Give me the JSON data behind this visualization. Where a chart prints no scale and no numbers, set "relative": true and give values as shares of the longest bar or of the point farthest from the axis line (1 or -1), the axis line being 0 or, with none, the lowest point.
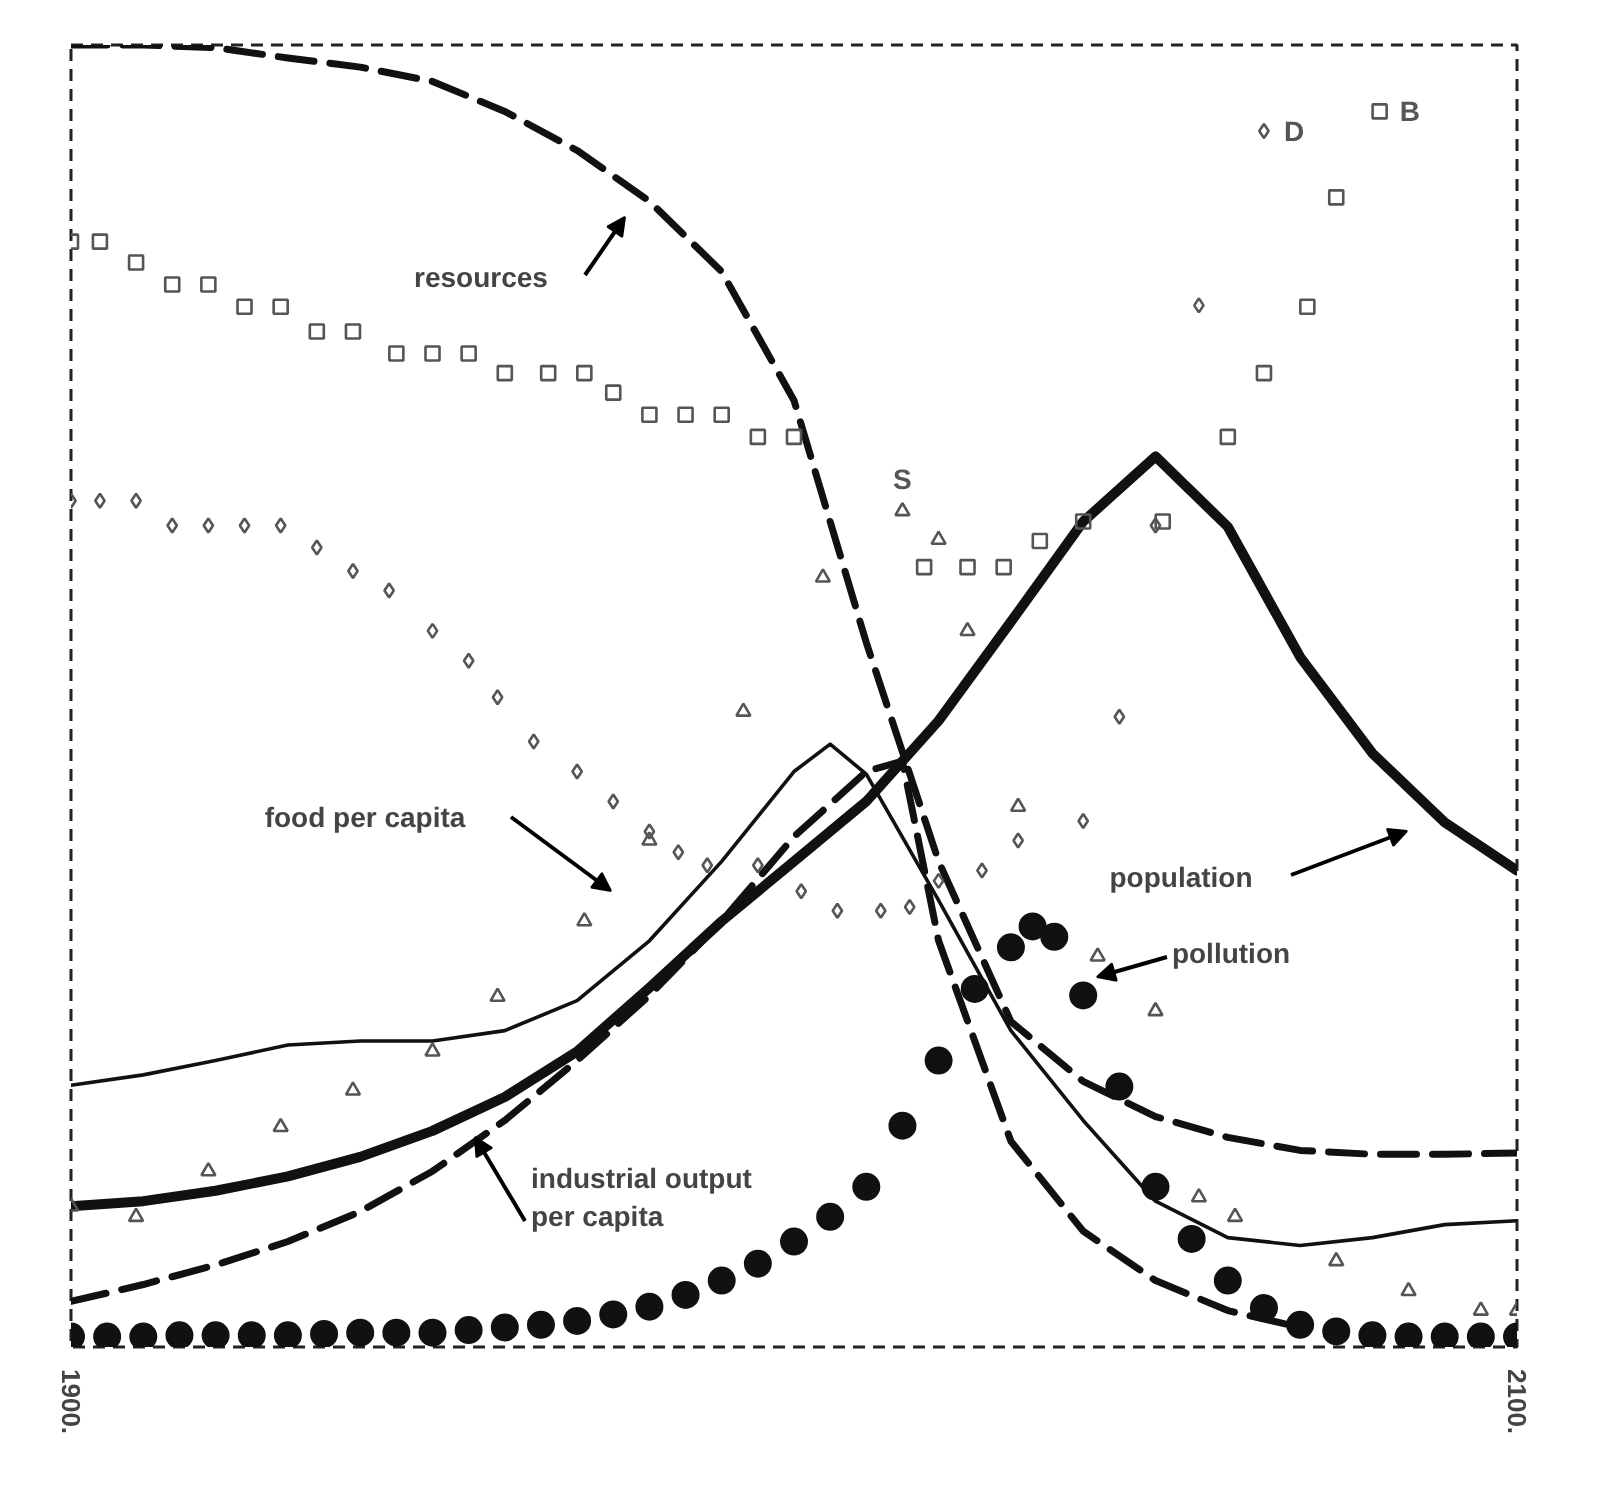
{
  "chart_data": {
    "type": "line",
    "relative": true,
    "xlim": [
      1900,
      2100
    ],
    "xticks": [
      {
        "value": 1900,
        "label": "1900."
      },
      {
        "value": 2100,
        "label": "2100."
      }
    ],
    "grid": false,
    "legend": false,
    "tick_labels": "x",
    "series": [
      {
        "color": "#111111",
        "line_style": "dashed",
        "x": [
          1900,
          1910,
          1920,
          1930,
          1940,
          1950,
          1960,
          1970,
          1980,
          1990,
          2000,
          2010,
          2020,
          2030,
          2040,
          2050,
          2060,
          2070,
          2080,
          2090,
          2100
        ],
        "values": [
          1.0,
          1.0,
          0.998,
          0.99,
          0.983,
          0.972,
          0.949,
          0.919,
          0.88,
          0.826,
          0.727,
          0.541,
          0.373,
          0.25,
          0.204,
          0.177,
          0.161,
          0.151,
          0.148,
          0.148,
          0.149
        ]
      },
      {
        "color": "#111111",
        "line_style": "solid",
        "x": [
          1900,
          1910,
          1920,
          1930,
          1940,
          1950,
          1960,
          1970,
          1980,
          1990,
          2000,
          2010,
          2020,
          2030,
          2040,
          2050,
          2060,
          2070,
          2080,
          2090,
          2100
        ],
        "values": [
          0.108,
          0.112,
          0.12,
          0.131,
          0.146,
          0.166,
          0.192,
          0.227,
          0.276,
          0.327,
          0.373,
          0.419,
          0.481,
          0.557,
          0.634,
          0.684,
          0.63,
          0.53,
          0.456,
          0.403,
          0.366
        ]
      },
      {
        "color": "#111111",
        "line_style": "solid",
        "x": [
          1900,
          1910,
          1920,
          1930,
          1940,
          1950,
          1960,
          1970,
          1980,
          1990,
          2000,
          2005,
          2010,
          2020,
          2030,
          2040,
          2050,
          2060,
          2070,
          2080,
          2090,
          2100
        ],
        "values": [
          0.201,
          0.209,
          0.22,
          0.232,
          0.235,
          0.235,
          0.243,
          0.266,
          0.312,
          0.373,
          0.442,
          0.463,
          0.44,
          0.343,
          0.243,
          0.174,
          0.112,
          0.084,
          0.078,
          0.084,
          0.094,
          0.097
        ]
      },
      {
        "color": "#111111",
        "line_style": "dashed",
        "x": [
          1900,
          1910,
          1920,
          1930,
          1940,
          1950,
          1960,
          1970,
          1980,
          1990,
          2000,
          2010,
          2015,
          2020,
          2030,
          2040,
          2050,
          2060,
          2070
        ],
        "values": [
          0.035,
          0.048,
          0.063,
          0.081,
          0.104,
          0.135,
          0.174,
          0.22,
          0.27,
          0.327,
          0.392,
          0.442,
          0.45,
          0.312,
          0.158,
          0.089,
          0.051,
          0.028,
          0.015
        ]
      },
      {
        "type": "scatter",
        "marker": "circle",
        "color": "#111111",
        "x": [
          1900,
          1905,
          1910,
          1915,
          1920,
          1925,
          1930,
          1935,
          1940,
          1945,
          1950,
          1955,
          1960,
          1965,
          1970,
          1975,
          1980,
          1985,
          1990,
          1995,
          2000,
          2005,
          2010,
          2015,
          2020,
          2025,
          2030,
          2033,
          2036,
          2040,
          2045,
          2050,
          2055,
          2060,
          2065,
          2070,
          2075,
          2080,
          2085,
          2090,
          2095,
          2100
        ],
        "values": [
          0.008,
          0.008,
          0.008,
          0.009,
          0.009,
          0.009,
          0.009,
          0.01,
          0.011,
          0.011,
          0.011,
          0.013,
          0.015,
          0.017,
          0.02,
          0.025,
          0.031,
          0.04,
          0.051,
          0.064,
          0.081,
          0.1,
          0.123,
          0.17,
          0.22,
          0.275,
          0.307,
          0.323,
          0.315,
          0.27,
          0.2,
          0.123,
          0.083,
          0.051,
          0.03,
          0.017,
          0.012,
          0.009,
          0.008,
          0.008,
          0.008,
          0.008
        ]
      },
      {
        "type": "scatter",
        "name": "B",
        "marker": "square",
        "color": "#555555",
        "x": [
          1900,
          1904,
          1909,
          1914,
          1919,
          1924,
          1929,
          1934,
          1939,
          1945,
          1950,
          1955,
          1960,
          1966,
          1971,
          1975,
          1980,
          1985,
          1990,
          1995,
          2000,
          2018,
          2024,
          2029,
          2034,
          2040,
          2051,
          2060,
          2065,
          2071,
          2075,
          2081
        ],
        "values": [
          0.849,
          0.849,
          0.833,
          0.816,
          0.816,
          0.799,
          0.799,
          0.78,
          0.78,
          0.763,
          0.763,
          0.763,
          0.748,
          0.748,
          0.748,
          0.733,
          0.716,
          0.716,
          0.716,
          0.699,
          0.699,
          0.599,
          0.599,
          0.599,
          0.619,
          0.634,
          0.634,
          0.699,
          0.748,
          0.799,
          0.883,
          0.949
        ]
      },
      {
        "type": "scatter",
        "name": "D",
        "marker": "diamond",
        "color": "#555555",
        "x": [
          1900,
          1904,
          1909,
          1914,
          1919,
          1924,
          1929,
          1934,
          1939,
          1944,
          1950,
          1955,
          1959,
          1964,
          1970,
          1975,
          1980,
          1984,
          1988,
          1995,
          2001,
          2006,
          2012,
          2016,
          2020,
          2026,
          2031,
          2040,
          2045,
          2050,
          2056,
          2065
        ],
        "values": [
          0.65,
          0.65,
          0.65,
          0.631,
          0.631,
          0.631,
          0.631,
          0.614,
          0.596,
          0.581,
          0.55,
          0.527,
          0.499,
          0.465,
          0.442,
          0.419,
          0.396,
          0.38,
          0.37,
          0.37,
          0.35,
          0.335,
          0.335,
          0.338,
          0.358,
          0.366,
          0.389,
          0.404,
          0.484,
          0.631,
          0.8,
          0.934
        ]
      },
      {
        "type": "scatter",
        "name": "S",
        "marker": "triangle",
        "color": "#555555",
        "x": [
          1900,
          1909,
          1919,
          1929,
          1939,
          1950,
          1959,
          1971,
          1980,
          1993,
          2004,
          2015,
          2020,
          2024,
          2031,
          2042,
          2050,
          2056,
          2061,
          2075,
          2085,
          2095,
          2100
        ],
        "values": [
          0.108,
          0.1,
          0.135,
          0.169,
          0.197,
          0.227,
          0.269,
          0.327,
          0.389,
          0.488,
          0.591,
          0.642,
          0.62,
          0.55,
          0.415,
          0.3,
          0.258,
          0.115,
          0.1,
          0.066,
          0.043,
          0.028,
          0.028
        ]
      }
    ],
    "annotations": [
      "resources",
      "food per capita",
      "industrial output\nper capita",
      "population",
      "pollution"
    ]
  }
}
